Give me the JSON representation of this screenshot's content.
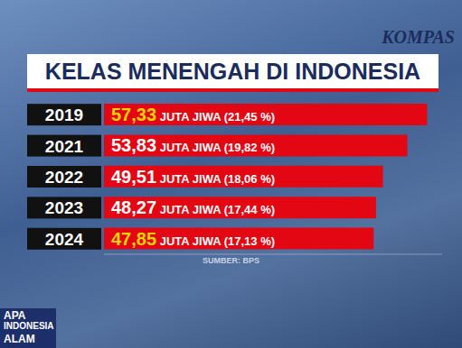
{
  "chart_data": {
    "type": "bar",
    "title": "KELAS MENENGAH DI INDONESIA",
    "orientation": "horizontal",
    "categories": [
      "2019",
      "2021",
      "2022",
      "2023",
      "2024"
    ],
    "values": [
      57.33,
      53.83,
      49.51,
      48.27,
      47.85
    ],
    "value_labels": [
      "57,33 JUTA JIWA (21,45 %)",
      "53,83 JUTA JIWA (19,82 %)",
      "49,51 JUTA JIWA (18,06 %)",
      "48,27 JUTA JIWA (17,44 %)",
      "47,85 JUTA JIWA (17,13 %)"
    ],
    "color": "#e30613",
    "xlim": [
      0,
      60
    ],
    "data_labels": true,
    "tick_labels": "y",
    "annotations": [
      "KOMPAS",
      "SUMBER: BPS",
      "APA",
      "INDONESIA",
      "ALAM"
    ]
  }
}
